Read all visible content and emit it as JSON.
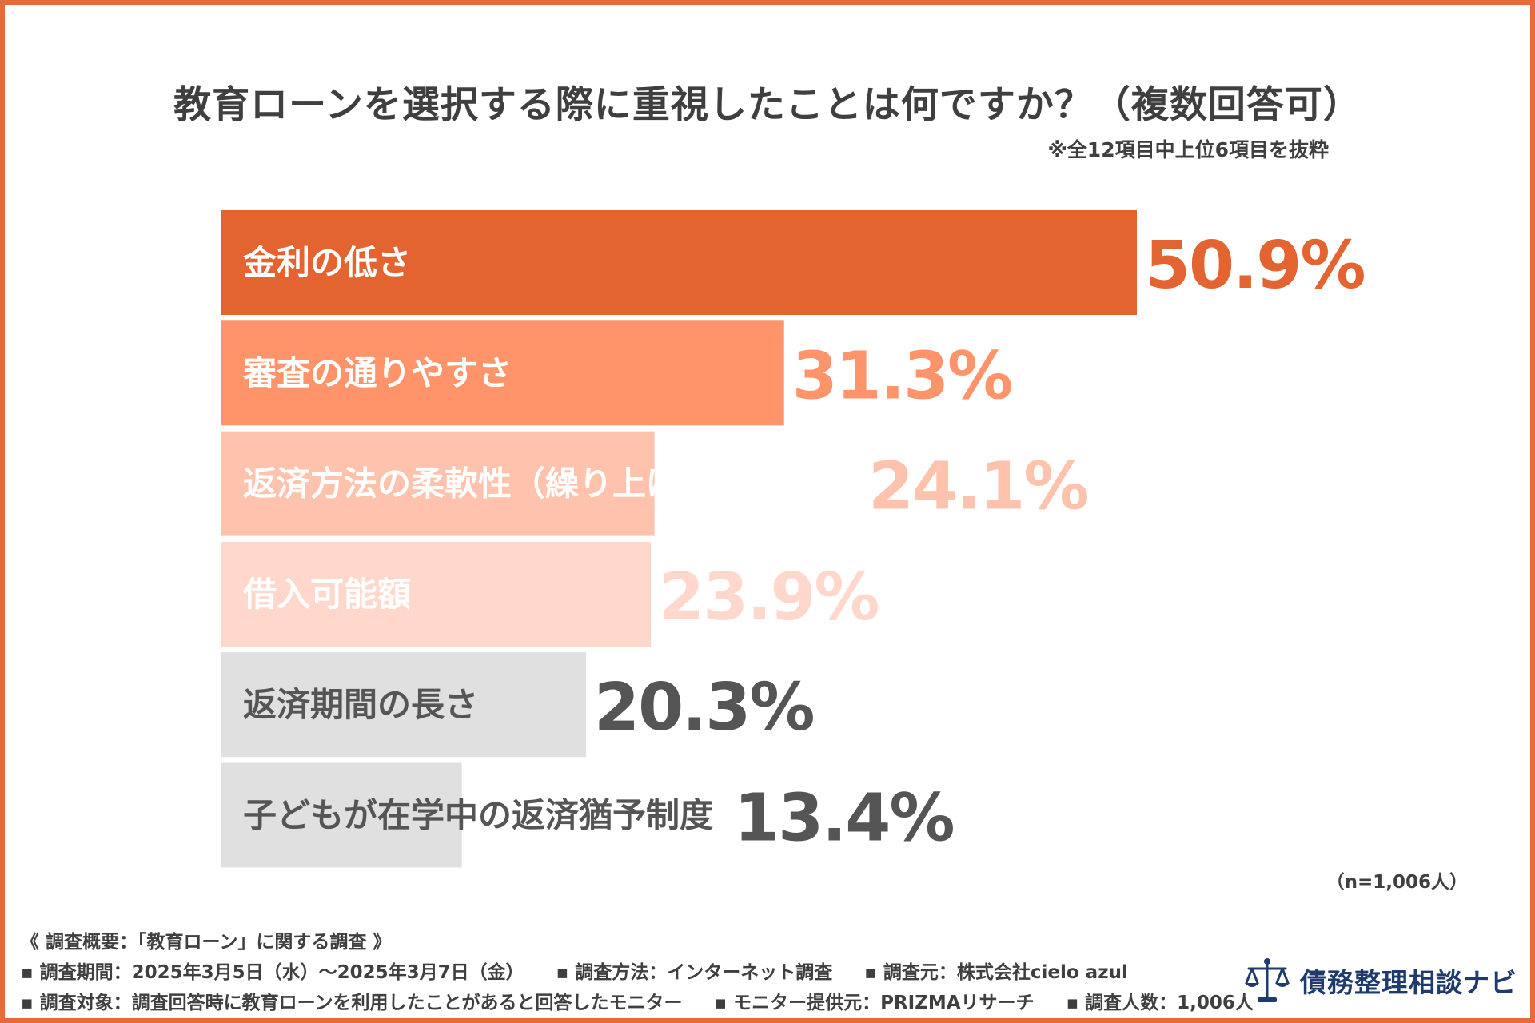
{
  "chart_data": {
    "type": "bar",
    "orientation": "horizontal",
    "title": "教育ローンを選択する際に重視したことは何ですか？（複数回答可）",
    "subtitle": "※全12項目中上位6項目を抜粋",
    "categories": [
      "金利の低さ",
      "審査の通りやすさ",
      "返済方法の柔軟性（繰り上げ返済など）",
      "借入可能額",
      "返済期間の長さ",
      "子どもが在学中の返済猶予制度"
    ],
    "values": [
      50.9,
      31.3,
      24.1,
      23.9,
      20.3,
      13.4
    ],
    "value_labels": [
      "50.9%",
      "31.3%",
      "24.1%",
      "23.9%",
      "20.3%",
      "13.4%"
    ],
    "unit": "%",
    "xlim": [
      0,
      50.9
    ],
    "bar_colors": [
      "#E46431",
      "#FF946B",
      "#FFC2AD",
      "#FFD7CB",
      "#E0E0E0",
      "#E0E0E0"
    ],
    "bar_text_colors": [
      "#FFFFFF",
      "#FFFFFF",
      "#FFFFFF",
      "#FFFFFF",
      "#555555",
      "#555555"
    ],
    "value_colors": [
      "#E46431",
      "#FF946B",
      "#FFC2AD",
      "#FFD7CB",
      "#555555",
      "#555555"
    ],
    "sample_note": "（n=1,006人）"
  },
  "survey": {
    "heading": "《 調査概要：「教育ローン」に関する調査 》",
    "period": "▪ 調査期間：2025年3月5日（水）～2025年3月7日（金）",
    "method": "▪ 調査方法：インターネット調査",
    "organizer": "▪ 調査元：株式会社cielo azul",
    "target": "▪ 調査対象：調査回答時に教育ローンを利用したことがあると回答したモニター",
    "provider": "▪ モニター提供元：PRIZMAリサーチ",
    "respondents": "▪ 調査人数：1,006人"
  },
  "logo": {
    "text": "債務整理相談ナビ",
    "icon": "scales-of-justice-icon",
    "color": "#1F3B6E"
  },
  "colors": {
    "frame": "#E86A3A",
    "text": "#3F3F3F"
  }
}
